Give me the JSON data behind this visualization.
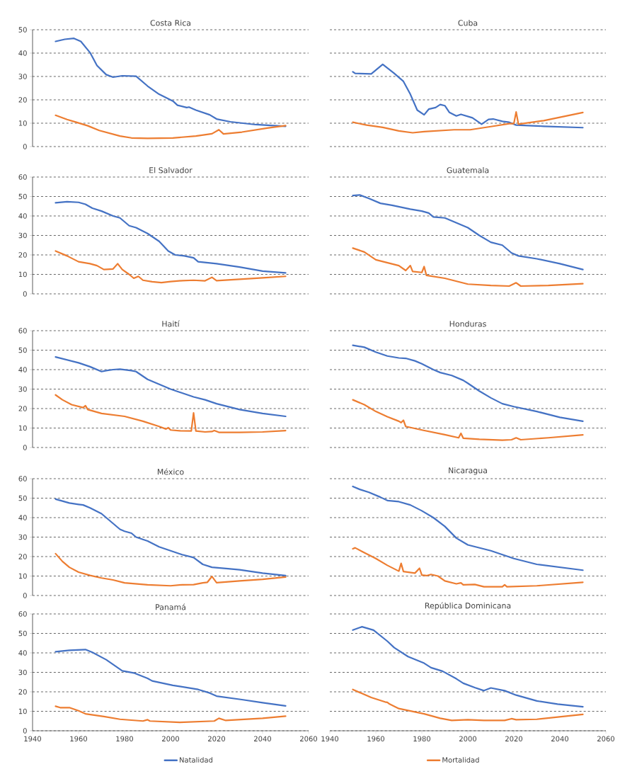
{
  "chart_data": [
    {
      "type": "line",
      "title": "Costa Rica",
      "xlim": [
        1940,
        2060
      ],
      "ylim": [
        0,
        50
      ],
      "yticks": [
        0,
        10,
        20,
        30,
        40,
        50
      ],
      "grid": "y",
      "tick_labels": "y",
      "series": [
        {
          "color": "#4472c4",
          "x": [
            1950,
            1954,
            1958,
            1961,
            1965,
            1968,
            1972,
            1975,
            1979,
            1985,
            1990,
            1995,
            2001,
            2003,
            2007,
            2008,
            2011,
            2017,
            2020,
            2026,
            2037,
            2050
          ],
          "values": [
            45.0,
            45.9,
            46.3,
            45.0,
            40.2,
            34.7,
            30.8,
            29.7,
            30.3,
            30.1,
            25.9,
            22.4,
            19.5,
            17.7,
            16.7,
            16.9,
            15.6,
            13.6,
            11.8,
            10.6,
            9.4,
            8.7
          ]
        },
        {
          "color": "#ed7d31",
          "x": [
            1950,
            1955,
            1959,
            1964,
            1969,
            1978,
            1983,
            1990,
            2001,
            2011,
            2018,
            2021,
            2023,
            2031,
            2042,
            2050
          ],
          "values": [
            13.4,
            11.6,
            10.4,
            8.9,
            6.9,
            4.5,
            3.7,
            3.5,
            3.7,
            4.5,
            5.5,
            7.2,
            5.4,
            6.2,
            7.9,
            9.0
          ]
        }
      ]
    },
    {
      "type": "line",
      "title": "Cuba",
      "xlim": [
        1940,
        2060
      ],
      "ylim": [
        0,
        50
      ],
      "yticks": [
        0,
        10,
        20,
        30,
        40,
        50
      ],
      "grid": "y",
      "tick_labels": false,
      "series": [
        {
          "color": "#4472c4",
          "x": [
            1950,
            1951,
            1958,
            1963,
            1968,
            1972,
            1975,
            1978,
            1981,
            1983,
            1986,
            1988,
            1990,
            1992,
            1995,
            1997,
            2002,
            2006,
            2009,
            2011,
            2015,
            2018,
            2021,
            2033,
            2050
          ],
          "values": [
            32.0,
            31.3,
            31.1,
            35.2,
            31.3,
            27.9,
            22.4,
            15.6,
            13.6,
            16.0,
            16.7,
            18.0,
            17.5,
            14.6,
            13.1,
            13.8,
            12.3,
            9.6,
            11.6,
            11.8,
            10.8,
            10.4,
            9.2,
            8.7,
            8.1
          ]
        },
        {
          "color": "#ed7d31",
          "x": [
            1950,
            1956,
            1963,
            1970,
            1976,
            1981,
            1994,
            2001,
            2011,
            2018,
            2020,
            2021,
            2022,
            2033,
            2050
          ],
          "values": [
            10.4,
            9.2,
            8.2,
            6.7,
            5.9,
            6.4,
            7.2,
            7.2,
            8.7,
            9.8,
            9.8,
            14.8,
            9.6,
            11.1,
            14.6
          ]
        }
      ]
    },
    {
      "type": "line",
      "title": "El Salvador",
      "xlim": [
        1940,
        2060
      ],
      "ylim": [
        0,
        60
      ],
      "yticks": [
        0,
        10,
        20,
        30,
        40,
        50,
        60
      ],
      "grid": "y",
      "tick_labels": "y",
      "series": [
        {
          "color": "#4472c4",
          "x": [
            1950,
            1955,
            1960,
            1963,
            1966,
            1970,
            1975,
            1978,
            1982,
            1985,
            1990,
            1995,
            1999,
            2002,
            2006,
            2010,
            2012,
            2020,
            2030,
            2040,
            2050
          ],
          "values": [
            46.8,
            47.3,
            47.0,
            46.0,
            44.0,
            42.5,
            40.0,
            39.0,
            35.0,
            34.0,
            31.0,
            27.0,
            22.0,
            20.0,
            19.5,
            18.5,
            16.5,
            15.5,
            13.8,
            11.7,
            10.8
          ]
        },
        {
          "color": "#ed7d31",
          "x": [
            1950,
            1955,
            1960,
            1965,
            1968,
            1971,
            1975,
            1977,
            1979,
            1982,
            1984,
            1986,
            1988,
            1992,
            1996,
            2000,
            2005,
            2010,
            2015,
            2018,
            2020,
            2030,
            2040,
            2050
          ],
          "values": [
            22.0,
            19.5,
            16.5,
            15.5,
            14.5,
            12.5,
            12.8,
            15.5,
            12.5,
            10.0,
            8.0,
            9.0,
            7.0,
            6.2,
            5.8,
            6.3,
            6.8,
            7.0,
            6.7,
            8.5,
            6.8,
            7.5,
            8.2,
            9.0
          ]
        }
      ]
    },
    {
      "type": "line",
      "title": "Guatemala",
      "xlim": [
        1940,
        2060
      ],
      "ylim": [
        0,
        60
      ],
      "yticks": [
        0,
        10,
        20,
        30,
        40,
        50,
        60
      ],
      "grid": "y",
      "tick_labels": false,
      "series": [
        {
          "color": "#4472c4",
          "x": [
            1950,
            1953,
            1957,
            1962,
            1967,
            1975,
            1980,
            1983,
            1985,
            1990,
            1995,
            2000,
            2005,
            2010,
            2015,
            2019,
            2022,
            2030,
            2040,
            2050
          ],
          "values": [
            50.5,
            50.8,
            49.0,
            46.5,
            45.5,
            43.5,
            42.5,
            41.5,
            39.5,
            39.0,
            36.5,
            34.0,
            30.0,
            26.5,
            25.0,
            21.0,
            19.5,
            18.0,
            15.5,
            12.5
          ]
        },
        {
          "color": "#ed7d31",
          "x": [
            1950,
            1955,
            1960,
            1965,
            1970,
            1973,
            1975,
            1976,
            1980,
            1981,
            1982,
            1990,
            2000,
            2010,
            2018,
            2021,
            2023,
            2035,
            2050
          ],
          "values": [
            23.5,
            21.5,
            17.5,
            16.0,
            14.5,
            12.0,
            14.5,
            11.5,
            11.0,
            14.0,
            9.5,
            8.0,
            5.0,
            4.3,
            4.0,
            5.7,
            4.0,
            4.3,
            5.2
          ]
        }
      ]
    },
    {
      "type": "line",
      "title": "Haití",
      "xlim": [
        1940,
        2060
      ],
      "ylim": [
        0,
        60
      ],
      "yticks": [
        0,
        10,
        20,
        30,
        40,
        50,
        60
      ],
      "grid": "y",
      "tick_labels": "y",
      "series": [
        {
          "color": "#4472c4",
          "x": [
            1950,
            1955,
            1960,
            1965,
            1970,
            1972,
            1975,
            1978,
            1983,
            1985,
            1990,
            1995,
            2000,
            2005,
            2010,
            2015,
            2020,
            2030,
            2040,
            2050
          ],
          "values": [
            46.5,
            45.0,
            43.5,
            41.5,
            39.0,
            39.5,
            40.0,
            40.2,
            39.5,
            39.0,
            35.0,
            32.5,
            30.0,
            28.0,
            26.0,
            24.5,
            22.5,
            19.5,
            17.5,
            16.0
          ]
        },
        {
          "color": "#ed7d31",
          "x": [
            1950,
            1953,
            1957,
            1962,
            1963,
            1964,
            1970,
            1980,
            1988,
            1995,
            1998,
            1999,
            2000,
            2004,
            2009,
            2010,
            2011,
            2015,
            2018,
            2019,
            2021,
            2030,
            2040,
            2050
          ],
          "values": [
            27.0,
            24.5,
            22.0,
            20.5,
            21.5,
            19.5,
            17.5,
            16.0,
            13.5,
            10.8,
            9.5,
            10.2,
            9.0,
            8.6,
            8.5,
            17.8,
            8.5,
            8.0,
            8.2,
            8.7,
            7.8,
            7.8,
            8.0,
            8.7
          ]
        }
      ]
    },
    {
      "type": "line",
      "title": "Honduras",
      "xlim": [
        1940,
        2060
      ],
      "ylim": [
        0,
        60
      ],
      "yticks": [
        0,
        10,
        20,
        30,
        40,
        50,
        60
      ],
      "grid": "y",
      "tick_labels": false,
      "series": [
        {
          "color": "#4472c4",
          "x": [
            1950,
            1955,
            1960,
            1965,
            1970,
            1973,
            1977,
            1980,
            1985,
            1988,
            1993,
            1998,
            2000,
            2005,
            2010,
            2015,
            2020,
            2030,
            2040,
            2050
          ],
          "values": [
            52.5,
            51.5,
            49.0,
            47.0,
            46.0,
            45.8,
            44.5,
            43.0,
            40.0,
            38.5,
            37.0,
            34.5,
            33.0,
            29.0,
            25.5,
            22.5,
            21.0,
            18.5,
            15.5,
            13.5
          ]
        },
        {
          "color": "#ed7d31",
          "x": [
            1950,
            1955,
            1960,
            1965,
            1970,
            1971,
            1972,
            1973,
            1980,
            1990,
            1996,
            1997,
            1998,
            2005,
            2015,
            2019,
            2021,
            2023,
            2035,
            2050
          ],
          "values": [
            24.5,
            22.0,
            18.5,
            15.8,
            13.5,
            12.8,
            14.0,
            10.8,
            9.0,
            6.6,
            5.0,
            7.3,
            4.8,
            4.2,
            3.8,
            4.0,
            5.0,
            4.0,
            5.0,
            6.5
          ]
        }
      ]
    },
    {
      "type": "line",
      "title": "México",
      "xlim": [
        1940,
        2060
      ],
      "ylim": [
        0,
        60
      ],
      "yticks": [
        0,
        10,
        20,
        30,
        40,
        50,
        60
      ],
      "grid": "y",
      "tick_labels": "y",
      "series": [
        {
          "color": "#4472c4",
          "x": [
            1950,
            1953,
            1956,
            1960,
            1962,
            1965,
            1970,
            1972,
            1975,
            1978,
            1980,
            1983,
            1985,
            1990,
            1995,
            2000,
            2005,
            2010,
            2014,
            2018,
            2025,
            2030,
            2040,
            2050
          ],
          "values": [
            49.5,
            48.5,
            47.5,
            46.8,
            46.5,
            45.0,
            42.0,
            40.0,
            37.0,
            34.0,
            33.0,
            32.0,
            30.0,
            28.0,
            25.0,
            23.0,
            21.0,
            19.5,
            16.0,
            14.5,
            13.8,
            13.2,
            11.5,
            10.2
          ]
        },
        {
          "color": "#ed7d31",
          "x": [
            1950,
            1953,
            1956,
            1960,
            1965,
            1970,
            1975,
            1980,
            1990,
            2000,
            2005,
            2010,
            2014,
            2016,
            2018,
            2020,
            2030,
            2040,
            2050
          ],
          "values": [
            21.5,
            17.5,
            14.5,
            12.0,
            10.3,
            9.0,
            8.0,
            6.5,
            5.5,
            5.0,
            5.5,
            5.6,
            6.5,
            6.8,
            9.8,
            6.6,
            7.5,
            8.3,
            9.5
          ]
        }
      ]
    },
    {
      "type": "line",
      "title": "Nicaragua",
      "xlim": [
        1940,
        2060
      ],
      "ylim": [
        0,
        60
      ],
      "yticks": [
        0,
        10,
        20,
        30,
        40,
        50,
        60
      ],
      "grid": "y",
      "tick_labels": false,
      "series": [
        {
          "color": "#4472c4",
          "x": [
            1950,
            1953,
            1957,
            1962,
            1965,
            1970,
            1975,
            1980,
            1985,
            1990,
            1995,
            2000,
            2005,
            2010,
            2015,
            2020,
            2030,
            2040,
            2050
          ],
          "values": [
            56.0,
            54.5,
            53.0,
            50.5,
            48.8,
            48.2,
            46.5,
            43.5,
            40.0,
            35.5,
            29.5,
            26.0,
            24.5,
            23.0,
            21.0,
            19.0,
            16.0,
            14.5,
            13.0
          ]
        },
        {
          "color": "#ed7d31",
          "x": [
            1950,
            1951,
            1955,
            1960,
            1965,
            1970,
            1971,
            1972,
            1977,
            1979,
            1980,
            1982,
            1984,
            1987,
            1990,
            1995,
            1997,
            1998,
            2003,
            2007,
            2015,
            2016,
            2017,
            2030,
            2050
          ],
          "values": [
            24.0,
            24.5,
            22.0,
            19.0,
            15.5,
            12.5,
            16.5,
            12.3,
            11.5,
            14.0,
            10.5,
            10.2,
            10.8,
            10.0,
            7.5,
            6.0,
            6.5,
            5.5,
            5.7,
            4.5,
            4.5,
            5.5,
            4.5,
            5.0,
            6.8
          ]
        }
      ]
    },
    {
      "type": "line",
      "title": "Panamá",
      "xlim": [
        1940,
        2060
      ],
      "ylim": [
        0,
        60
      ],
      "yticks": [
        0,
        10,
        20,
        30,
        40,
        50,
        60
      ],
      "xticks": [
        1940,
        1960,
        1980,
        2000,
        2020,
        2040,
        2060
      ],
      "grid": "y",
      "legend": "bottom",
      "series": [
        {
          "name": "Natalidad",
          "color": "#4472c4",
          "x": [
            1950,
            1956,
            1963,
            1966,
            1972,
            1979,
            1984,
            1990,
            1992,
            2001,
            2004,
            2012,
            2017,
            2020,
            2031,
            2040,
            2050
          ],
          "values": [
            40.6,
            41.3,
            41.7,
            40.3,
            36.5,
            30.8,
            29.7,
            26.9,
            25.6,
            23.3,
            22.8,
            21.2,
            19.4,
            17.8,
            16.0,
            14.4,
            12.8
          ]
        },
        {
          "name": "Mortalidad",
          "color": "#ed7d31",
          "x": [
            1950,
            1952,
            1956,
            1960,
            1963,
            1971,
            1978,
            1988,
            1990,
            1991,
            2004,
            2019,
            2021,
            2024,
            2040,
            2050
          ],
          "values": [
            12.6,
            11.9,
            11.9,
            10.3,
            8.7,
            7.3,
            5.9,
            5.0,
            5.7,
            5.0,
            4.3,
            5.0,
            6.4,
            5.3,
            6.4,
            7.5
          ]
        }
      ]
    },
    {
      "type": "line",
      "title": "República Dominicana",
      "xlim": [
        1940,
        2060
      ],
      "ylim": [
        0,
        60
      ],
      "yticks": [
        0,
        10,
        20,
        30,
        40,
        50,
        60
      ],
      "xticks": [
        1940,
        1960,
        1980,
        2000,
        2020,
        2040,
        2060
      ],
      "grid": "y",
      "tick_labels": "x",
      "series": [
        {
          "color": "#4472c4",
          "x": [
            1950,
            1954,
            1959,
            1965,
            1968,
            1974,
            1981,
            1984,
            1989,
            1995,
            1998,
            2003,
            2007,
            2010,
            2016,
            2021,
            2030,
            2039,
            2050
          ],
          "values": [
            51.7,
            53.4,
            51.7,
            46.0,
            42.7,
            38.1,
            34.7,
            32.4,
            30.6,
            26.7,
            24.4,
            22.2,
            20.6,
            22.0,
            20.6,
            18.3,
            15.3,
            13.7,
            12.3
          ]
        },
        {
          "color": "#ed7d31",
          "x": [
            1950,
            1958,
            1964,
            1965,
            1966,
            1970,
            1981,
            1988,
            1993,
            2000,
            2007,
            2016,
            2019,
            2021,
            2030,
            2050
          ],
          "values": [
            21.2,
            17.1,
            14.8,
            14.6,
            13.7,
            11.4,
            8.7,
            6.4,
            5.3,
            5.7,
            5.3,
            5.3,
            6.2,
            5.7,
            5.9,
            8.4
          ]
        }
      ]
    }
  ]
}
